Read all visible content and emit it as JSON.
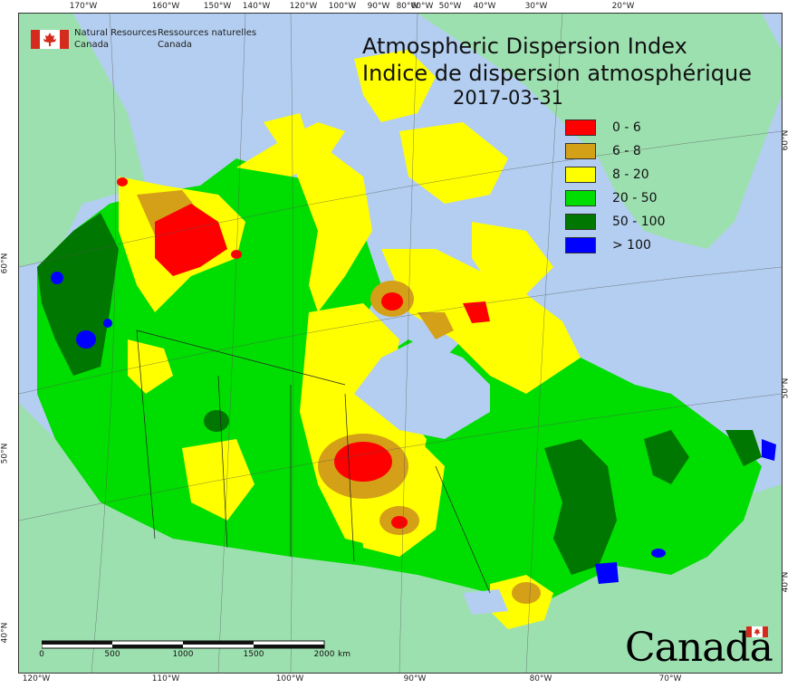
{
  "title": {
    "en": "Atmospheric Dispersion Index",
    "fr": "Indice de dispersion atmosphérique",
    "date": "2017-03-31"
  },
  "agency": {
    "en_line1": "Natural Resources",
    "en_line2": "Canada",
    "fr_line1": "Ressources naturelles",
    "fr_line2": "Canada"
  },
  "legend": [
    {
      "label": "0 - 6",
      "color": "#ff0000"
    },
    {
      "label": "6 - 8",
      "color": "#d4a017"
    },
    {
      "label": "8 - 20",
      "color": "#ffff00"
    },
    {
      "label": "20 - 50",
      "color": "#00dd00"
    },
    {
      "label": "50 - 100",
      "color": "#007700"
    },
    {
      "label": "> 100",
      "color": "#0000ff"
    }
  ],
  "top_ticks": [
    "170°W",
    "160°W",
    "150°W",
    "140°W",
    "120°W",
    "100°W",
    "90°W",
    "80°W",
    "60°W",
    "50°W",
    "40°W",
    "30°W",
    "20°W"
  ],
  "bottom_ticks": [
    "120°W",
    "110°W",
    "100°W",
    "90°W",
    "80°W",
    "70°W"
  ],
  "left_ticks": [
    "60°N",
    "50°N",
    "40°N"
  ],
  "right_ticks": [
    "60°N",
    "50°N",
    "40°N"
  ],
  "scalebar": {
    "labels": [
      "0",
      "500",
      "1000",
      "1500",
      "2000"
    ],
    "unit": "km"
  },
  "wordmark": "Canada",
  "colors": {
    "ocean": "#b3cef0",
    "foreign_land": "#9de0b0",
    "frame": "#333333"
  }
}
